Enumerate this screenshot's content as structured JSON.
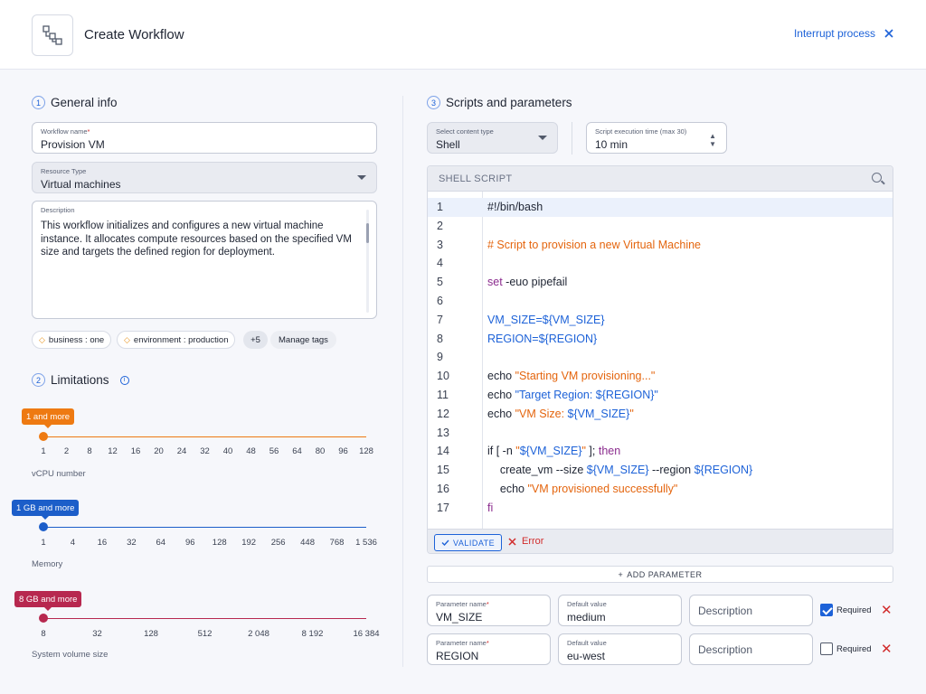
{
  "header": {
    "title": "Create Workflow",
    "interrupt_label": "Interrupt process"
  },
  "general": {
    "num": "1",
    "title": "General info",
    "workflow_name": {
      "label": "Workflow name",
      "required": "*",
      "value": "Provision VM"
    },
    "resource_type": {
      "label": "Resource Type",
      "value": "Virtual machines"
    },
    "description": {
      "label": "Description",
      "value": "This workflow initializes and configures a new virtual machine instance. It allocates compute resources based on the specified VM size and targets the defined region for deployment."
    },
    "tags": [
      "business : one",
      "environment : production"
    ],
    "more_tags": "+5",
    "manage_tags": "Manage tags"
  },
  "limits": {
    "num": "2",
    "title": "Limitations",
    "vcpu": {
      "badge": "1 and more",
      "selected": "1",
      "ticks": [
        "1",
        "2",
        "8",
        "12",
        "16",
        "20",
        "24",
        "32",
        "40",
        "48",
        "56",
        "64",
        "80",
        "96",
        "128"
      ],
      "label": "vCPU number",
      "color": "#ee7a12"
    },
    "memory": {
      "badge": "1 GB and more",
      "selected": "1",
      "ticks": [
        "1",
        "4",
        "16",
        "32",
        "64",
        "96",
        "128",
        "192",
        "256",
        "448",
        "768",
        "1 536"
      ],
      "label": "Memory",
      "color": "#1c5ec9"
    },
    "volume": {
      "badge": "8 GB and more",
      "selected": "8",
      "ticks": [
        "8",
        "32",
        "128",
        "512",
        "2 048",
        "8 192",
        "16 384"
      ],
      "label": "System volume size",
      "color": "#b7284f"
    }
  },
  "scripts": {
    "num": "3",
    "title": "Scripts and parameters",
    "content_type": {
      "label": "Select content type",
      "value": "Shell"
    },
    "exec_time": {
      "label": "Script execution time (max 30)",
      "value": "10 min"
    },
    "editor_title": "SHELL SCRIPT",
    "lines": [
      [
        [
          "t",
          "#!/bin/bash"
        ]
      ],
      [],
      [
        [
          "c",
          "# Script to provision a new Virtual Machine"
        ]
      ],
      [],
      [
        [
          "k",
          "set"
        ],
        [
          "t",
          " -euo pipefail"
        ]
      ],
      [],
      [
        [
          "v",
          "VM_SIZE=${VM_SIZE}"
        ]
      ],
      [
        [
          "v",
          "REGION=${REGION}"
        ]
      ],
      [],
      [
        [
          "t",
          "echo "
        ],
        [
          "s",
          "\"Starting VM provisioning...\""
        ]
      ],
      [
        [
          "t",
          "echo "
        ],
        [
          "v",
          "\"Target Region: ${REGION}\""
        ]
      ],
      [
        [
          "t",
          "echo "
        ],
        [
          "s",
          "\"VM Size: "
        ],
        [
          "v",
          "${VM_SIZE}"
        ],
        [
          "s",
          "\""
        ]
      ],
      [],
      [
        [
          "t",
          "if [ -n "
        ],
        [
          "s",
          "\""
        ],
        [
          "v",
          "${VM_SIZE}"
        ],
        [
          "s",
          "\""
        ],
        [
          "t",
          " ]; "
        ],
        [
          "k",
          "then"
        ]
      ],
      [
        [
          "t",
          "    create_vm --size "
        ],
        [
          "v",
          "${VM_SIZE}"
        ],
        [
          "t",
          " --region "
        ],
        [
          "v",
          "${REGION}"
        ]
      ],
      [
        [
          "t",
          "    echo "
        ],
        [
          "s",
          "\"VM provisioned successfully\""
        ]
      ],
      [
        [
          "k",
          "fi"
        ]
      ]
    ],
    "validate_label": "VALIDATE",
    "error_label": "Error",
    "add_param_label": "ADD PARAMETER",
    "params": [
      {
        "name_label": "Parameter name",
        "name": "VM_SIZE",
        "default_label": "Default value",
        "default": "medium",
        "desc_placeholder": "Description",
        "required_label": "Required",
        "required": true
      },
      {
        "name_label": "Parameter name",
        "name": "REGION",
        "default_label": "Default value",
        "default": "eu-west",
        "desc_placeholder": "Description",
        "required_label": "Required",
        "required": false
      }
    ]
  },
  "colors": {
    "accent": "#1d62d8",
    "error": "#d12b2b",
    "comment": "#e4650e",
    "keyword": "#8b2c8e"
  },
  "icons": {
    "logo": "workflow-icon",
    "close": "close-icon",
    "search": "search-icon",
    "tag": "tag-icon",
    "info": "info-icon",
    "check": "check-icon",
    "remove": "remove-icon",
    "plus": "plus-icon"
  }
}
